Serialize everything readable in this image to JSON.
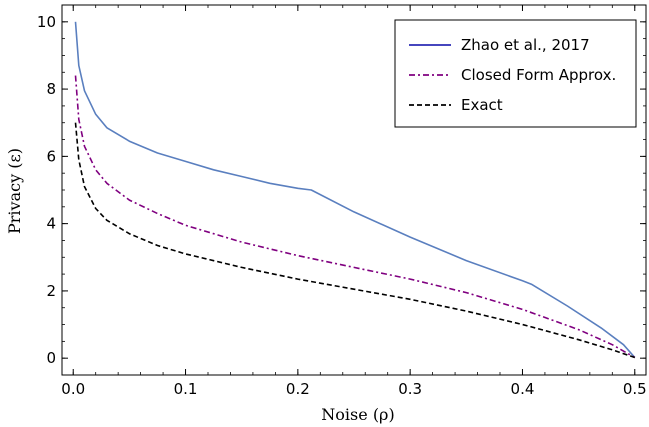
{
  "chart_data": {
    "type": "line",
    "title": "",
    "xlabel": "Noise (ρ)",
    "ylabel": "Privacy (ε)",
    "xlim": [
      -0.01,
      0.51
    ],
    "ylim": [
      -0.5,
      10.5
    ],
    "xticks": [
      0.0,
      0.1,
      0.2,
      0.3,
      0.4,
      0.5
    ],
    "xtick_labels": [
      "0.0",
      "0.1",
      "0.2",
      "0.3",
      "0.4",
      "0.5"
    ],
    "yticks": [
      0,
      2,
      4,
      6,
      8,
      10
    ],
    "ytick_labels": [
      "0",
      "2",
      "4",
      "6",
      "8",
      "10"
    ],
    "grid": false,
    "legend": "top-right",
    "series": [
      {
        "name": "Zhao et al., 2017",
        "color": "#5a7fbf",
        "style": "solid",
        "x": [
          0.002,
          0.005,
          0.01,
          0.02,
          0.03,
          0.05,
          0.075,
          0.1,
          0.125,
          0.15,
          0.175,
          0.2,
          0.212,
          0.25,
          0.3,
          0.35,
          0.4,
          0.408,
          0.44,
          0.47,
          0.49,
          0.5
        ],
        "y": [
          10.0,
          8.7,
          7.95,
          7.25,
          6.85,
          6.45,
          6.1,
          5.85,
          5.6,
          5.4,
          5.2,
          5.05,
          5.0,
          4.35,
          3.6,
          2.9,
          2.3,
          2.2,
          1.55,
          0.9,
          0.4,
          0.02
        ]
      },
      {
        "name": "Closed Form Approx.",
        "color": "#800080",
        "style": "dashdot",
        "x": [
          0.002,
          0.005,
          0.01,
          0.02,
          0.03,
          0.05,
          0.075,
          0.1,
          0.15,
          0.2,
          0.25,
          0.3,
          0.35,
          0.4,
          0.45,
          0.48,
          0.5
        ],
        "y": [
          8.4,
          7.1,
          6.3,
          5.6,
          5.2,
          4.7,
          4.3,
          3.95,
          3.45,
          3.05,
          2.7,
          2.35,
          1.95,
          1.45,
          0.85,
          0.4,
          0.02
        ]
      },
      {
        "name": "Exact",
        "color": "#000000",
        "style": "dashed",
        "x": [
          0.002,
          0.005,
          0.01,
          0.02,
          0.03,
          0.05,
          0.075,
          0.1,
          0.15,
          0.2,
          0.25,
          0.3,
          0.35,
          0.4,
          0.45,
          0.48,
          0.5
        ],
        "y": [
          7.0,
          5.9,
          5.1,
          4.45,
          4.1,
          3.7,
          3.35,
          3.1,
          2.7,
          2.35,
          2.05,
          1.75,
          1.4,
          1.0,
          0.55,
          0.25,
          0.02
        ]
      }
    ]
  }
}
